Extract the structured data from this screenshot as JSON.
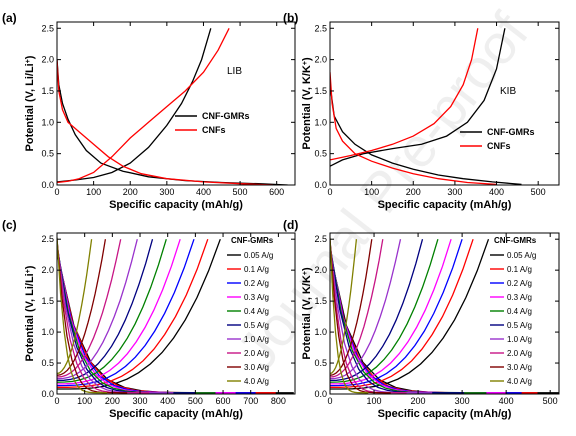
{
  "watermark": "Journal Pre-proof",
  "chart_data": [
    {
      "type": "line",
      "panel_label": "(a)",
      "annotation": "LIB",
      "xlabel": "Specific capacity (mAh/g)",
      "ylabel": "Potential (V, Li/Li",
      "ylabel_sup": "+",
      "ylabel_end": ")",
      "xlim": [
        0,
        650
      ],
      "ylim": [
        0,
        2.6
      ],
      "xticks": [
        "0",
        "100",
        "200",
        "300",
        "400",
        "500",
        "600"
      ],
      "yticks": [
        "0.0",
        "0.5",
        "1.0",
        "1.5",
        "2.0",
        "2.5"
      ],
      "series": [
        {
          "name": "CNF-GMRs",
          "color": "#000000",
          "discharge": [
            [
              0,
              2.0
            ],
            [
              5,
              1.6
            ],
            [
              15,
              1.3
            ],
            [
              30,
              1.05
            ],
            [
              50,
              0.8
            ],
            [
              80,
              0.55
            ],
            [
              120,
              0.35
            ],
            [
              180,
              0.22
            ],
            [
              250,
              0.13
            ],
            [
              350,
              0.07
            ],
            [
              450,
              0.04
            ],
            [
              550,
              0.02
            ],
            [
              630,
              0.0
            ]
          ],
          "charge": [
            [
              0,
              0.05
            ],
            [
              50,
              0.08
            ],
            [
              100,
              0.12
            ],
            [
              150,
              0.2
            ],
            [
              200,
              0.35
            ],
            [
              250,
              0.6
            ],
            [
              300,
              0.95
            ],
            [
              340,
              1.3
            ],
            [
              370,
              1.65
            ],
            [
              395,
              2.0
            ],
            [
              420,
              2.5
            ]
          ]
        },
        {
          "name": "CNFs",
          "color": "#ff0000",
          "discharge": [
            [
              0,
              2.0
            ],
            [
              5,
              1.5
            ],
            [
              15,
              1.2
            ],
            [
              30,
              1.0
            ],
            [
              60,
              0.85
            ],
            [
              100,
              0.65
            ],
            [
              140,
              0.45
            ],
            [
              180,
              0.3
            ],
            [
              230,
              0.18
            ],
            [
              300,
              0.1
            ],
            [
              400,
              0.05
            ],
            [
              500,
              0.02
            ],
            [
              590,
              0.0
            ]
          ],
          "charge": [
            [
              0,
              0.04
            ],
            [
              30,
              0.06
            ],
            [
              60,
              0.1
            ],
            [
              100,
              0.2
            ],
            [
              150,
              0.45
            ],
            [
              200,
              0.75
            ],
            [
              250,
              1.0
            ],
            [
              300,
              1.25
            ],
            [
              350,
              1.5
            ],
            [
              400,
              1.8
            ],
            [
              440,
              2.15
            ],
            [
              470,
              2.5
            ]
          ]
        }
      ]
    },
    {
      "type": "line",
      "panel_label": "(b)",
      "annotation": "KIB",
      "xlabel": "Specific capacity (mAh/g)",
      "ylabel": "Potential (V, K/K",
      "ylabel_sup": "+",
      "ylabel_end": ")",
      "xlim": [
        0,
        550
      ],
      "ylim": [
        0,
        2.6
      ],
      "xticks": [
        "0",
        "100",
        "200",
        "300",
        "400",
        "500"
      ],
      "yticks": [
        "0.0",
        "0.5",
        "1.0",
        "1.5",
        "2.0",
        "2.5"
      ],
      "series": [
        {
          "name": "CNF-GMRs",
          "color": "#000000",
          "discharge": [
            [
              0,
              1.6
            ],
            [
              10,
              1.1
            ],
            [
              30,
              0.85
            ],
            [
              60,
              0.65
            ],
            [
              100,
              0.48
            ],
            [
              150,
              0.35
            ],
            [
              200,
              0.25
            ],
            [
              260,
              0.16
            ],
            [
              320,
              0.1
            ],
            [
              390,
              0.05
            ],
            [
              460,
              0.01
            ]
          ],
          "charge": [
            [
              0,
              0.3
            ],
            [
              30,
              0.4
            ],
            [
              80,
              0.5
            ],
            [
              150,
              0.58
            ],
            [
              220,
              0.65
            ],
            [
              280,
              0.78
            ],
            [
              330,
              1.0
            ],
            [
              370,
              1.35
            ],
            [
              400,
              1.85
            ],
            [
              420,
              2.5
            ]
          ]
        },
        {
          "name": "CNFs",
          "color": "#ff0000",
          "discharge": [
            [
              0,
              1.8
            ],
            [
              5,
              1.3
            ],
            [
              15,
              0.9
            ],
            [
              30,
              0.7
            ],
            [
              60,
              0.5
            ],
            [
              100,
              0.38
            ],
            [
              150,
              0.27
            ],
            [
              200,
              0.18
            ],
            [
              260,
              0.1
            ],
            [
              330,
              0.04
            ],
            [
              400,
              0.01
            ]
          ],
          "charge": [
            [
              0,
              0.4
            ],
            [
              50,
              0.47
            ],
            [
              100,
              0.55
            ],
            [
              150,
              0.65
            ],
            [
              200,
              0.78
            ],
            [
              250,
              0.98
            ],
            [
              290,
              1.25
            ],
            [
              320,
              1.6
            ],
            [
              340,
              2.0
            ],
            [
              355,
              2.5
            ]
          ]
        }
      ]
    },
    {
      "type": "line",
      "panel_label": "(c)",
      "legend_title": "CNF-GMRs",
      "xlabel": "Specific capacity (mAh/g)",
      "ylabel": "Potential (V, Li/Li",
      "ylabel_sup": "+",
      "ylabel_end": ")",
      "xlim": [
        0,
        860
      ],
      "ylim": [
        0,
        2.6
      ],
      "xticks": [
        "0",
        "100",
        "200",
        "300",
        "400",
        "500",
        "600",
        "700",
        "800"
      ],
      "yticks": [
        "0.0",
        "0.5",
        "1.0",
        "1.5",
        "2.0",
        "2.5"
      ],
      "rate_series": [
        {
          "name": "0.05 A/g",
          "color": "#000000",
          "capacity": 590
        },
        {
          "name": "0.1 A/g",
          "color": "#ff0000",
          "capacity": 545
        },
        {
          "name": "0.2 A/g",
          "color": "#0000ff",
          "capacity": 495
        },
        {
          "name": "0.3 A/g",
          "color": "#ff00ff",
          "capacity": 445
        },
        {
          "name": "0.4 A/g",
          "color": "#008000",
          "capacity": 395
        },
        {
          "name": "0.5 A/g",
          "color": "#000080",
          "capacity": 345
        },
        {
          "name": "1.0 A/g",
          "color": "#9932cc",
          "capacity": 290
        },
        {
          "name": "2.0 A/g",
          "color": "#c71585",
          "capacity": 230
        },
        {
          "name": "3.0 A/g",
          "color": "#800000",
          "capacity": 175
        },
        {
          "name": "4.0 A/g",
          "color": "#808000",
          "capacity": 125
        }
      ]
    },
    {
      "type": "line",
      "panel_label": "(d)",
      "legend_title": "CNF-GMRs",
      "xlabel": "Specific capacity (mAh/g)",
      "ylabel": "Potential (V, K/K",
      "ylabel_sup": "+",
      "ylabel_end": ")",
      "xlim": [
        0,
        520
      ],
      "ylim": [
        0,
        2.6
      ],
      "xticks": [
        "0",
        "100",
        "200",
        "300",
        "400",
        "500"
      ],
      "yticks": [
        "0.0",
        "0.5",
        "1.0",
        "1.5",
        "2.0",
        "2.5"
      ],
      "rate_series": [
        {
          "name": "0.05 A/g",
          "color": "#000000",
          "capacity": 360
        },
        {
          "name": "0.1 A/g",
          "color": "#ff0000",
          "capacity": 325
        },
        {
          "name": "0.2 A/g",
          "color": "#0000ff",
          "capacity": 300
        },
        {
          "name": "0.3 A/g",
          "color": "#ff00ff",
          "capacity": 275
        },
        {
          "name": "0.4 A/g",
          "color": "#008000",
          "capacity": 245
        },
        {
          "name": "0.5 A/g",
          "color": "#000080",
          "capacity": 210
        },
        {
          "name": "1.0 A/g",
          "color": "#9932cc",
          "capacity": 160
        },
        {
          "name": "2.0 A/g",
          "color": "#c71585",
          "capacity": 120
        },
        {
          "name": "3.0 A/g",
          "color": "#800000",
          "capacity": 95
        },
        {
          "name": "4.0 A/g",
          "color": "#808000",
          "capacity": 60
        }
      ]
    }
  ]
}
